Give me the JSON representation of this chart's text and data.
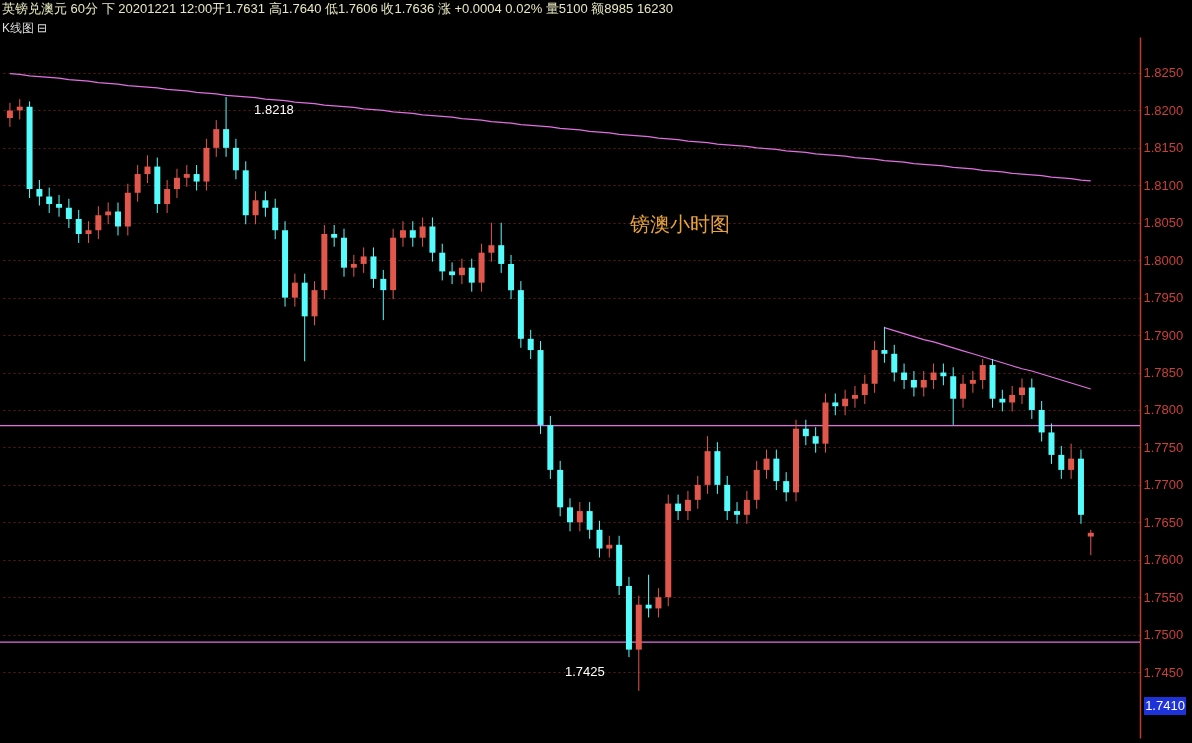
{
  "chart_data": {
    "type": "candlestick",
    "title": "英镑兑澳元 60分 下 20201221 12:00开1.7631 高1.7640 低1.7606 收1.7636 涨 +0.0004 0.02% 量5100 额8985 16230",
    "subtitle": "K线图 ⊟",
    "categories": [
      null,
      null,
      null,
      null,
      null,
      null,
      null,
      null,
      null,
      null,
      null,
      null,
      null,
      null,
      null,
      null,
      null,
      null,
      null,
      null,
      null,
      null,
      null,
      null,
      null,
      null,
      null,
      null,
      null,
      null,
      null,
      null,
      null,
      null,
      null,
      null,
      null,
      null,
      null,
      null,
      null,
      null,
      null,
      null,
      null,
      null,
      null,
      null,
      null,
      null,
      null,
      null,
      null,
      null,
      null,
      null,
      null,
      null,
      null,
      null,
      null,
      null,
      null,
      null,
      null,
      null,
      null,
      null,
      null,
      null,
      null,
      null,
      null,
      null,
      null,
      null,
      null,
      null,
      null,
      null,
      null,
      null,
      null,
      null,
      null,
      null,
      null,
      null,
      null,
      null,
      null,
      null,
      null,
      null,
      null,
      null,
      null,
      null,
      null,
      null,
      null,
      null,
      null,
      null,
      null,
      null,
      null,
      null,
      null,
      null,
      null
    ],
    "ohlc": [
      [
        1.819,
        1.821,
        1.8178,
        1.82
      ],
      [
        1.82,
        1.8215,
        1.8188,
        1.8205
      ],
      [
        1.8205,
        1.8212,
        1.8083,
        1.8095
      ],
      [
        1.8095,
        1.8107,
        1.8073,
        1.8085
      ],
      [
        1.8085,
        1.8097,
        1.8063,
        1.8075
      ],
      [
        1.8075,
        1.8087,
        1.8058,
        1.807
      ],
      [
        1.807,
        1.8082,
        1.8043,
        1.8055
      ],
      [
        1.8055,
        1.8067,
        1.8023,
        1.8035
      ],
      [
        1.8035,
        1.8052,
        1.8023,
        1.804
      ],
      [
        1.804,
        1.8072,
        1.8028,
        1.806
      ],
      [
        1.806,
        1.8077,
        1.8048,
        1.8065
      ],
      [
        1.8065,
        1.8077,
        1.8033,
        1.8045
      ],
      [
        1.8045,
        1.8102,
        1.8033,
        1.809
      ],
      [
        1.809,
        1.8127,
        1.8078,
        1.8115
      ],
      [
        1.8115,
        1.814,
        1.8103,
        1.8125
      ],
      [
        1.8125,
        1.8137,
        1.8063,
        1.8075
      ],
      [
        1.8075,
        1.8107,
        1.8063,
        1.8095
      ],
      [
        1.8095,
        1.8122,
        1.8083,
        1.811
      ],
      [
        1.811,
        1.8127,
        1.8098,
        1.8115
      ],
      [
        1.8115,
        1.8127,
        1.8093,
        1.8105
      ],
      [
        1.8105,
        1.8162,
        1.8093,
        1.815
      ],
      [
        1.815,
        1.8187,
        1.8138,
        1.8175
      ],
      [
        1.8175,
        1.8218,
        1.8138,
        1.815
      ],
      [
        1.815,
        1.8162,
        1.8108,
        1.812
      ],
      [
        1.812,
        1.8132,
        1.8048,
        1.806
      ],
      [
        1.806,
        1.8092,
        1.8048,
        1.808
      ],
      [
        1.808,
        1.8092,
        1.8058,
        1.807
      ],
      [
        1.807,
        1.8082,
        1.8028,
        1.804
      ],
      [
        1.804,
        1.8052,
        1.7938,
        1.795
      ],
      [
        1.795,
        1.7982,
        1.7938,
        1.797
      ],
      [
        1.797,
        1.7982,
        1.7865,
        1.7925
      ],
      [
        1.7925,
        1.7972,
        1.7913,
        1.796
      ],
      [
        1.796,
        1.8047,
        1.7948,
        1.8035
      ],
      [
        1.8035,
        1.8047,
        1.8018,
        1.803
      ],
      [
        1.803,
        1.8042,
        1.7978,
        1.799
      ],
      [
        1.799,
        1.8007,
        1.7978,
        1.7995
      ],
      [
        1.7995,
        1.8017,
        1.7983,
        1.8005
      ],
      [
        1.8005,
        1.8017,
        1.7963,
        1.7975
      ],
      [
        1.7975,
        1.7987,
        1.792,
        1.796
      ],
      [
        1.796,
        1.8042,
        1.7948,
        1.803
      ],
      [
        1.803,
        1.8052,
        1.8018,
        1.804
      ],
      [
        1.804,
        1.8052,
        1.8018,
        1.803
      ],
      [
        1.803,
        1.8057,
        1.8018,
        1.8045
      ],
      [
        1.8045,
        1.8057,
        1.7998,
        1.801
      ],
      [
        1.801,
        1.8022,
        1.7973,
        1.7985
      ],
      [
        1.7985,
        1.7997,
        1.7968,
        1.798
      ],
      [
        1.798,
        1.8002,
        1.7968,
        1.799
      ],
      [
        1.799,
        1.8002,
        1.7958,
        1.797
      ],
      [
        1.797,
        1.8022,
        1.7958,
        1.801
      ],
      [
        1.801,
        1.805,
        1.7998,
        1.802
      ],
      [
        1.802,
        1.805,
        1.7983,
        1.7995
      ],
      [
        1.7995,
        1.8007,
        1.7948,
        1.796
      ],
      [
        1.796,
        1.7972,
        1.7883,
        1.7895
      ],
      [
        1.7895,
        1.7907,
        1.7868,
        1.788
      ],
      [
        1.788,
        1.7892,
        1.7768,
        1.778
      ],
      [
        1.778,
        1.7792,
        1.7708,
        1.772
      ],
      [
        1.772,
        1.7732,
        1.7658,
        1.767
      ],
      [
        1.767,
        1.7682,
        1.7638,
        1.765
      ],
      [
        1.765,
        1.7677,
        1.7638,
        1.7665
      ],
      [
        1.7665,
        1.7677,
        1.7628,
        1.764
      ],
      [
        1.764,
        1.7652,
        1.7603,
        1.7615
      ],
      [
        1.7615,
        1.7632,
        1.7603,
        1.762
      ],
      [
        1.762,
        1.7632,
        1.7553,
        1.7565
      ],
      [
        1.7565,
        1.7577,
        1.747,
        1.748
      ],
      [
        1.748,
        1.7552,
        1.7425,
        1.754
      ],
      [
        1.754,
        1.758,
        1.7523,
        1.7535
      ],
      [
        1.7535,
        1.7562,
        1.7523,
        1.755
      ],
      [
        1.755,
        1.7687,
        1.7538,
        1.7675
      ],
      [
        1.7675,
        1.7687,
        1.7653,
        1.7665
      ],
      [
        1.7665,
        1.7692,
        1.7653,
        1.768
      ],
      [
        1.768,
        1.7712,
        1.7668,
        1.77
      ],
      [
        1.77,
        1.7765,
        1.7688,
        1.7745
      ],
      [
        1.7745,
        1.7757,
        1.7688,
        1.77
      ],
      [
        1.77,
        1.7712,
        1.7653,
        1.7665
      ],
      [
        1.7665,
        1.7677,
        1.7648,
        1.766
      ],
      [
        1.766,
        1.7692,
        1.7648,
        1.768
      ],
      [
        1.768,
        1.7732,
        1.7668,
        1.772
      ],
      [
        1.772,
        1.7747,
        1.7708,
        1.7735
      ],
      [
        1.7735,
        1.7747,
        1.7693,
        1.7705
      ],
      [
        1.7705,
        1.7717,
        1.7678,
        1.769
      ],
      [
        1.769,
        1.7787,
        1.7678,
        1.7775
      ],
      [
        1.7775,
        1.7787,
        1.7753,
        1.7765
      ],
      [
        1.7765,
        1.7777,
        1.7743,
        1.7755
      ],
      [
        1.7755,
        1.7822,
        1.7743,
        1.781
      ],
      [
        1.781,
        1.7822,
        1.7793,
        1.7805
      ],
      [
        1.7805,
        1.7827,
        1.7793,
        1.7815
      ],
      [
        1.7815,
        1.7832,
        1.7803,
        1.782
      ],
      [
        1.782,
        1.7847,
        1.7808,
        1.7835
      ],
      [
        1.7835,
        1.7892,
        1.7823,
        1.788
      ],
      [
        1.788,
        1.7911,
        1.7863,
        1.7875
      ],
      [
        1.7875,
        1.7887,
        1.7838,
        1.785
      ],
      [
        1.785,
        1.7862,
        1.7828,
        1.784
      ],
      [
        1.784,
        1.7852,
        1.7818,
        1.783
      ],
      [
        1.783,
        1.7852,
        1.7818,
        1.784
      ],
      [
        1.784,
        1.7862,
        1.7828,
        1.785
      ],
      [
        1.785,
        1.7862,
        1.7833,
        1.7845
      ],
      [
        1.7845,
        1.7857,
        1.778,
        1.7815
      ],
      [
        1.7815,
        1.7847,
        1.7803,
        1.7835
      ],
      [
        1.7835,
        1.7852,
        1.7823,
        1.784
      ],
      [
        1.784,
        1.7868,
        1.7828,
        1.786
      ],
      [
        1.786,
        1.7868,
        1.7803,
        1.7815
      ],
      [
        1.7815,
        1.7827,
        1.7798,
        1.781
      ],
      [
        1.781,
        1.7832,
        1.7798,
        1.782
      ],
      [
        1.782,
        1.7842,
        1.7808,
        1.783
      ],
      [
        1.783,
        1.7842,
        1.7788,
        1.78
      ],
      [
        1.78,
        1.7812,
        1.7758,
        1.777
      ],
      [
        1.777,
        1.7782,
        1.7728,
        1.774
      ],
      [
        1.774,
        1.7752,
        1.7708,
        1.772
      ],
      [
        1.772,
        1.7755,
        1.7708,
        1.7735
      ],
      [
        1.7735,
        1.7747,
        1.7648,
        1.766
      ],
      [
        1.7631,
        1.764,
        1.7606,
        1.7636
      ]
    ],
    "colors": [
      "#e2574c",
      "#e2574c",
      "#54fcfc",
      "#54fcfc",
      "#54fcfc",
      "#54fcfc",
      "#54fcfc",
      "#54fcfc",
      "#e2574c",
      "#e2574c",
      "#e2574c",
      "#54fcfc",
      "#e2574c",
      "#e2574c",
      "#e2574c",
      "#54fcfc",
      "#e2574c",
      "#e2574c",
      "#e2574c",
      "#54fcfc",
      "#e2574c",
      "#e2574c",
      "#54fcfc",
      "#54fcfc",
      "#54fcfc",
      "#e2574c",
      "#54fcfc",
      "#54fcfc",
      "#54fcfc",
      "#e2574c",
      "#54fcfc",
      "#e2574c",
      "#e2574c",
      "#54fcfc",
      "#54fcfc",
      "#e2574c",
      "#e2574c",
      "#54fcfc",
      "#54fcfc",
      "#e2574c",
      "#e2574c",
      "#54fcfc",
      "#e2574c",
      "#54fcfc",
      "#54fcfc",
      "#54fcfc",
      "#e2574c",
      "#54fcfc",
      "#e2574c",
      "#e2574c",
      "#54fcfc",
      "#54fcfc",
      "#54fcfc",
      "#54fcfc",
      "#54fcfc",
      "#54fcfc",
      "#54fcfc",
      "#54fcfc",
      "#e2574c",
      "#54fcfc",
      "#54fcfc",
      "#e2574c",
      "#54fcfc",
      "#54fcfc",
      "#e2574c",
      "#54fcfc",
      "#e2574c",
      "#e2574c",
      "#54fcfc",
      "#e2574c",
      "#e2574c",
      "#e2574c",
      "#54fcfc",
      "#54fcfc",
      "#54fcfc",
      "#e2574c",
      "#e2574c",
      "#e2574c",
      "#54fcfc",
      "#54fcfc",
      "#e2574c",
      "#54fcfc",
      "#54fcfc",
      "#e2574c",
      "#54fcfc",
      "#e2574c",
      "#e2574c",
      "#e2574c",
      "#e2574c",
      "#54fcfc",
      "#54fcfc",
      "#54fcfc",
      "#54fcfc",
      "#e2574c",
      "#e2574c",
      "#54fcfc",
      "#54fcfc",
      "#e2574c",
      "#e2574c",
      "#e2574c",
      "#54fcfc",
      "#54fcfc",
      "#e2574c",
      "#e2574c",
      "#54fcfc",
      "#54fcfc",
      "#54fcfc",
      "#54fcfc",
      "#e2574c",
      "#54fcfc",
      "#e2574c"
    ],
    "series": [
      {
        "type": "line",
        "color": "#e070e0",
        "values": [
          1.8249,
          1.8248,
          1.8246,
          1.8245,
          1.8244,
          1.8243,
          1.8241,
          1.824,
          1.8239,
          1.8237,
          1.8236,
          1.8235,
          1.8233,
          1.8232,
          1.8231,
          1.823,
          1.8228,
          1.8227,
          1.8226,
          1.8224,
          1.8223,
          1.8222,
          1.822,
          1.8219,
          1.8218,
          1.8217,
          1.8215,
          1.8214,
          1.8213,
          1.8211,
          1.821,
          1.8209,
          1.8207,
          1.8206,
          1.8205,
          1.8204,
          1.8202,
          1.8201,
          1.82,
          1.8198,
          1.8197,
          1.8196,
          1.8194,
          1.8193,
          1.8192,
          1.8191,
          1.8189,
          1.8188,
          1.8187,
          1.8185,
          1.8184,
          1.8183,
          1.8181,
          1.818,
          1.8179,
          1.8178,
          1.8176,
          1.8175,
          1.8174,
          1.8172,
          1.8171,
          1.817,
          1.8168,
          1.8167,
          1.8166,
          1.8165,
          1.8163,
          1.8162,
          1.8161,
          1.8159,
          1.8158,
          1.8157,
          1.8155,
          1.8154,
          1.8153,
          1.8152,
          1.815,
          1.8149,
          1.8148,
          1.8146,
          1.8145,
          1.8144,
          1.8142,
          1.8141,
          1.814,
          1.8139,
          1.8137,
          1.8136,
          1.8135,
          1.8133,
          1.8132,
          1.8131,
          1.8129,
          1.8128,
          1.8127,
          1.8126,
          1.8124,
          1.8123,
          1.8122,
          1.812,
          1.8119,
          1.8118,
          1.8116,
          1.8115,
          1.8114,
          1.8113,
          1.8111,
          1.811,
          1.8109,
          1.8107,
          1.8106
        ]
      },
      {
        "type": "line",
        "color": "#e070e0",
        "values": [
          null,
          null,
          null,
          null,
          null,
          null,
          null,
          null,
          null,
          null,
          null,
          null,
          null,
          null,
          null,
          null,
          null,
          null,
          null,
          null,
          null,
          null,
          null,
          null,
          null,
          null,
          null,
          null,
          null,
          null,
          null,
          null,
          null,
          null,
          null,
          null,
          null,
          null,
          null,
          null,
          null,
          null,
          null,
          null,
          null,
          null,
          null,
          null,
          null,
          null,
          null,
          null,
          null,
          null,
          null,
          null,
          null,
          null,
          null,
          null,
          null,
          null,
          null,
          null,
          null,
          null,
          null,
          null,
          null,
          null,
          null,
          null,
          null,
          null,
          null,
          null,
          null,
          null,
          null,
          null,
          null,
          null,
          null,
          null,
          null,
          null,
          null,
          null,
          null,
          1.791,
          1.7906,
          1.7902,
          1.7898,
          1.7894,
          1.7891,
          1.7887,
          1.7883,
          1.7879,
          1.7875,
          1.7871,
          1.7867,
          1.7863,
          1.7859,
          1.7855,
          1.7852,
          1.7848,
          1.7844,
          1.784,
          1.7836,
          1.7832,
          1.7828
        ]
      }
    ],
    "ref_lines": [
      {
        "axis": "y",
        "value": 1.7779,
        "color": "#e070e0"
      },
      {
        "axis": "y",
        "value": 1.749,
        "color": "#e070e0"
      }
    ],
    "annotations": [
      {
        "text": "1.8218",
        "y": 1.8218
      },
      "1.7425",
      "镑澳小时图",
      "1.7410"
    ],
    "ylim": [
      1.7362,
      1.8298
    ],
    "yticks": [
      {
        "value": 1.745,
        "label": "1.7450"
      },
      {
        "value": 1.75,
        "label": "1.7500"
      },
      {
        "value": 1.755,
        "label": "1.7550"
      },
      {
        "value": 1.76,
        "label": "1.7600"
      },
      {
        "value": 1.765,
        "label": "1.7650"
      },
      {
        "value": 1.77,
        "label": "1.7700"
      },
      {
        "value": 1.775,
        "label": "1.7750"
      },
      {
        "value": 1.78,
        "label": "1.7800"
      },
      {
        "value": 1.785,
        "label": "1.7850"
      },
      {
        "value": 1.79,
        "label": "1.7900"
      },
      {
        "value": 1.795,
        "label": "1.7950"
      },
      {
        "value": 1.8,
        "label": "1.8000"
      },
      {
        "value": 1.805,
        "label": "1.8050"
      },
      {
        "value": 1.81,
        "label": "1.8100"
      },
      {
        "value": 1.815,
        "label": "1.8150"
      },
      {
        "value": 1.82,
        "label": "1.8200"
      },
      {
        "value": 1.825,
        "label": "1.8250"
      }
    ],
    "grid": "y",
    "tick_labels": "y"
  }
}
